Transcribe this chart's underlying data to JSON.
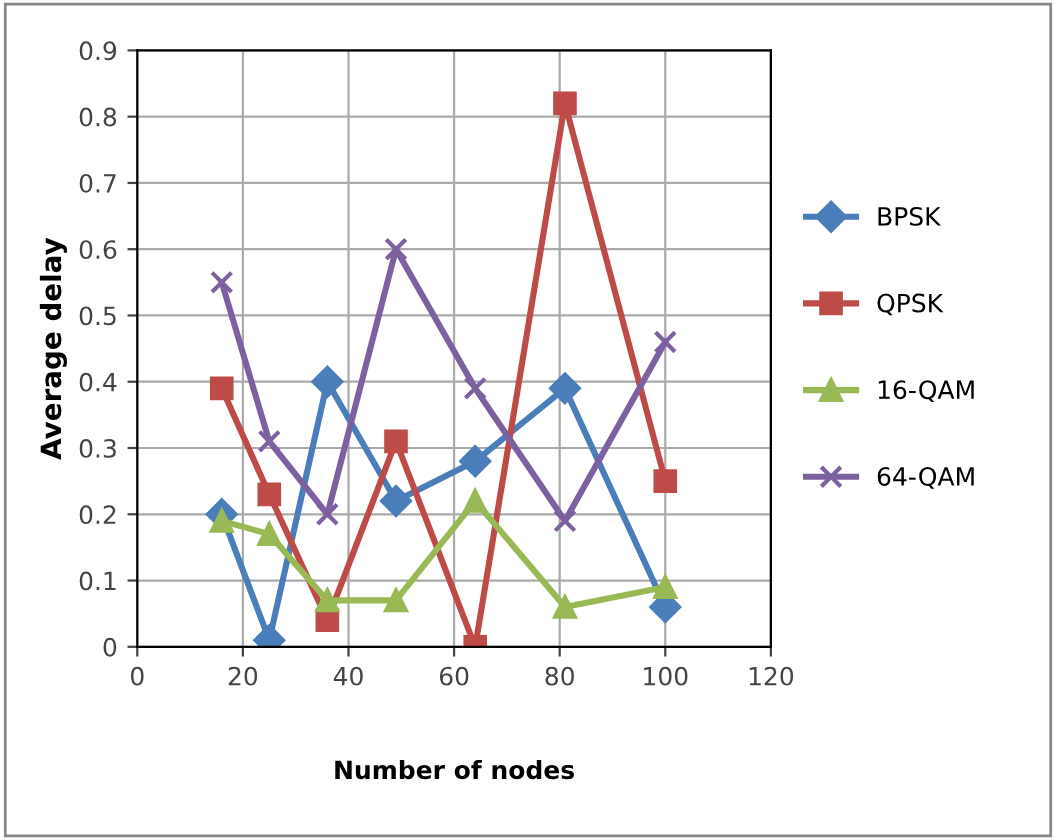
{
  "chart_data": {
    "type": "line",
    "xlabel": "Number of nodes",
    "ylabel": "Average delay",
    "x": [
      16,
      25,
      36,
      49,
      64,
      81,
      100
    ],
    "series": [
      {
        "name": "BPSK",
        "color": "#4a7ebb",
        "marker": "diamond",
        "values": [
          0.2,
          0.01,
          0.4,
          0.22,
          0.28,
          0.39,
          0.06
        ]
      },
      {
        "name": "QPSK",
        "color": "#be4b48",
        "marker": "square",
        "values": [
          0.39,
          0.23,
          0.04,
          0.31,
          0.0,
          0.82,
          0.25
        ]
      },
      {
        "name": "16-QAM",
        "color": "#98b954",
        "marker": "triangle",
        "values": [
          0.19,
          0.17,
          0.07,
          0.07,
          0.22,
          0.06,
          0.09
        ]
      },
      {
        "name": "64-QAM",
        "color": "#7d60a0",
        "marker": "cross",
        "values": [
          0.55,
          0.31,
          0.2,
          0.6,
          0.39,
          0.19,
          0.46
        ]
      }
    ],
    "xlim": [
      0,
      120
    ],
    "xticks": [
      0,
      20,
      40,
      60,
      80,
      100,
      120
    ],
    "ylim": [
      0,
      0.9
    ],
    "yticks": [
      0,
      0.1,
      0.2,
      0.3,
      0.4,
      0.5,
      0.6,
      0.7,
      0.8,
      0.9
    ],
    "grid": true,
    "legend": "right"
  }
}
